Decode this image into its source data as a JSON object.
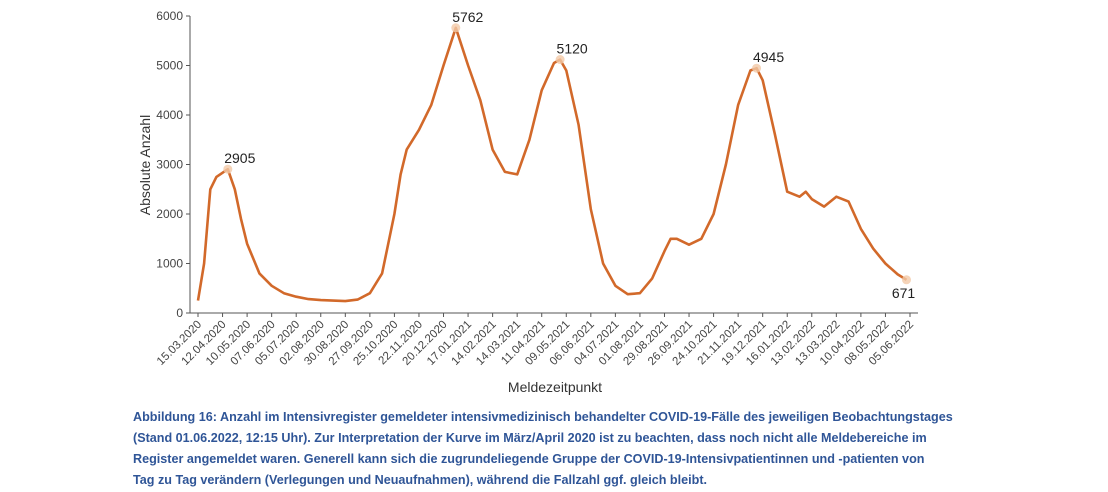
{
  "chart_data": {
    "type": "line",
    "y_label": "Absolute Anzahl",
    "x_label": "Meldezeitpunkt",
    "x": [
      "15.03.2020",
      "22.03.2020",
      "29.03.2020",
      "05.04.2020",
      "18.04.2020",
      "26.04.2020",
      "03.05.2020",
      "10.05.2020",
      "24.05.2020",
      "07.06.2020",
      "21.06.2020",
      "05.07.2020",
      "19.07.2020",
      "02.08.2020",
      "16.08.2020",
      "30.08.2020",
      "13.09.2020",
      "27.09.2020",
      "11.10.2020",
      "25.10.2020",
      "01.11.2020",
      "08.11.2020",
      "22.11.2020",
      "06.12.2020",
      "20.12.2020",
      "03.01.2021",
      "17.01.2021",
      "31.01.2021",
      "14.02.2021",
      "28.02.2021",
      "14.03.2021",
      "28.03.2021",
      "11.04.2021",
      "25.04.2021",
      "02.05.2021",
      "09.05.2021",
      "23.05.2021",
      "06.06.2021",
      "20.06.2021",
      "04.07.2021",
      "18.07.2021",
      "01.08.2021",
      "15.08.2021",
      "29.08.2021",
      "05.09.2021",
      "12.09.2021",
      "26.09.2021",
      "10.10.2021",
      "24.10.2021",
      "07.11.2021",
      "21.11.2021",
      "05.12.2021",
      "12.12.2021",
      "19.12.2021",
      "02.01.2022",
      "16.01.2022",
      "30.01.2022",
      "06.02.2022",
      "13.02.2022",
      "27.02.2022",
      "13.03.2022",
      "27.03.2022",
      "10.04.2022",
      "24.04.2022",
      "08.05.2022",
      "22.05.2022",
      "01.06.2022"
    ],
    "series": [
      {
        "name": "Anzahl",
        "color": "#d2692a",
        "values": [
          250,
          1000,
          2500,
          2750,
          2905,
          2500,
          1900,
          1400,
          800,
          550,
          400,
          330,
          280,
          260,
          250,
          240,
          270,
          400,
          800,
          2000,
          2800,
          3300,
          3700,
          4200,
          5000,
          5762,
          5000,
          4300,
          3300,
          2850,
          2800,
          3500,
          4500,
          5050,
          5120,
          4900,
          3800,
          2100,
          1000,
          550,
          380,
          400,
          700,
          1250,
          1500,
          1500,
          1380,
          1500,
          2000,
          3000,
          4200,
          4900,
          4945,
          4700,
          3600,
          2450,
          2350,
          2450,
          2300,
          2150,
          2350,
          2250,
          1700,
          1300,
          1000,
          780,
          671
        ]
      }
    ],
    "labeled_points": [
      4,
      25,
      34,
      52,
      66
    ],
    "xlim": [
      "15.03.2020",
      "05.06.2022"
    ],
    "xticks": [
      "15.03.2020",
      "12.04.2020",
      "10.05.2020",
      "07.06.2020",
      "05.07.2020",
      "02.08.2020",
      "30.08.2020",
      "27.09.2020",
      "25.10.2020",
      "22.11.2020",
      "20.12.2020",
      "17.01.2021",
      "14.02.2021",
      "14.03.2021",
      "11.04.2021",
      "09.05.2021",
      "06.06.2021",
      "04.07.2021",
      "01.08.2021",
      "29.08.2021",
      "26.09.2021",
      "24.10.2021",
      "21.11.2021",
      "19.12.2021",
      "16.01.2022",
      "13.02.2022",
      "13.03.2022",
      "10.04.2022",
      "08.05.2022",
      "05.06.2022"
    ],
    "ylim": [
      0,
      6000
    ],
    "yticks": [
      0,
      1000,
      2000,
      3000,
      4000,
      5000,
      6000
    ],
    "caption": [
      "Abbildung 16: Anzahl im Intensivregister gemeldeter intensivmedizinisch behandelter COVID-19-Fälle des jeweiligen Beobachtungstages",
      "(Stand 01.06.2022, 12:15 Uhr). Zur Interpretation der Kurve im März/April 2020 ist zu beachten, dass noch nicht alle Meldebereiche im",
      "Register angemeldet waren. Generell kann sich die zugrundeliegende Gruppe der COVID-19-Intensivpatientinnen und -patienten von",
      "Tag zu Tag verändern (Verlegungen und Neuaufnahmen), während die Fallzahl ggf. gleich bleibt."
    ]
  }
}
